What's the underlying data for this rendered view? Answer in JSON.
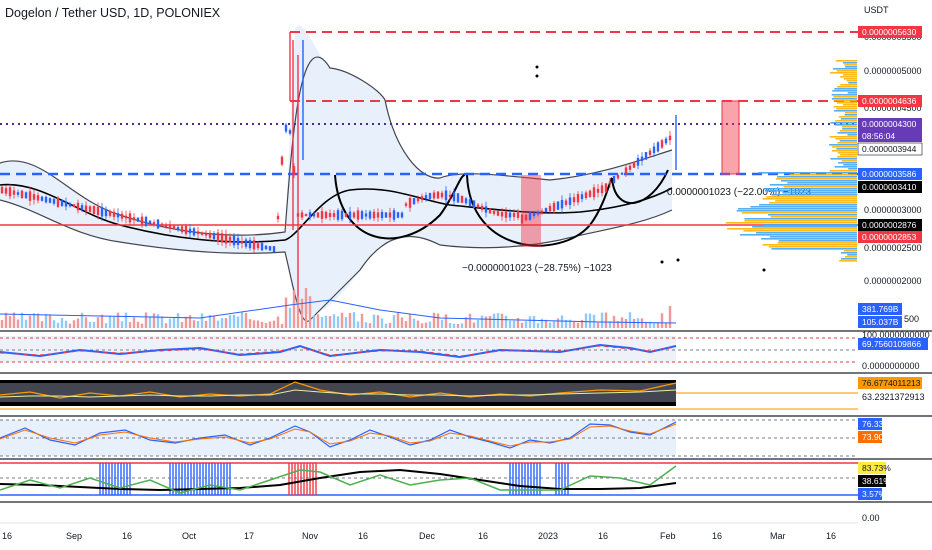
{
  "header": {
    "title": "Dogelon / Tether USD, 1D, POLONIEX",
    "currency": "USDT"
  },
  "chart_data": {
    "type": "candlestick",
    "symbol": "Dogelon / Tether USD",
    "timeframe": "1D",
    "exchange": "POLONIEX",
    "price_axis": {
      "ticks": [
        "0.0000005500",
        "0.0000005000",
        "0.0000004500",
        "0.0000003000",
        "0.0000002500",
        "0.0000002000"
      ],
      "ylim": [
        1.85e-07,
        5.95e-07
      ]
    },
    "price_labels": [
      {
        "text": "0.0000005630",
        "color": "#f23645",
        "kind": "line-tag"
      },
      {
        "text": "0.0000004636",
        "color": "#f23645",
        "kind": "line-tag"
      },
      {
        "text": "0.0000004300",
        "color": "#673ab7",
        "kind": "last-price"
      },
      {
        "text": "08:56:04",
        "color": "#673ab7",
        "kind": "countdown"
      },
      {
        "text": "0.0000003944",
        "color": "#ffffff",
        "kind": "value"
      },
      {
        "text": "0.0000003586",
        "color": "#2962ff",
        "kind": "line-tag"
      },
      {
        "text": "0.0000003410",
        "color": "#000000",
        "kind": "value"
      },
      {
        "text": "0.0000002876",
        "color": "#000000",
        "kind": "value"
      },
      {
        "text": "0.0000002853",
        "color": "#f23645",
        "kind": "line-tag"
      }
    ],
    "x_axis_labels": [
      "16",
      "Sep",
      "16",
      "Oct",
      "17",
      "Nov",
      "16",
      "Dec",
      "16",
      "2023",
      "16",
      "Feb",
      "16",
      "Mar",
      "16"
    ],
    "annotations": [
      "0.0000001023 (−22.00%) −1023",
      "−0.0000001023 (−28.75%) −1023"
    ],
    "volume": {
      "labels": [
        "381.769B",
        "105.037B"
      ],
      "tick": "500"
    },
    "indicators": [
      {
        "name": "panel1",
        "ticks": [
          "100.0000000000",
          "0.0000000000"
        ],
        "value": "69.7560109866"
      },
      {
        "name": "panel2",
        "values": [
          "76.6774011213",
          "63.2321372913"
        ]
      },
      {
        "name": "stochastic",
        "values": [
          "76.33",
          "73.90"
        ]
      },
      {
        "name": "panel4",
        "values": [
          "83.73%",
          "38.61%",
          "3.57%"
        ],
        "tick": "0.00"
      }
    ],
    "series": [
      {
        "kind": "ohlc",
        "x_range": [
          "Aug 16 2022",
          "Feb 3 2023"
        ],
        "close_approx": [
          3.5e-07,
          3.4e-07,
          3.1e-07,
          2.95e-07,
          2.8e-07,
          2.68e-07,
          2.68e-07,
          2.68e-07,
          2.68e-07,
          5.05e-07,
          4e-07,
          3.3e-07,
          3e-07,
          2.95e-07,
          2.95e-07,
          3e-07,
          3.2e-07,
          3.25e-07,
          3.3e-07,
          3.1e-07,
          3e-07,
          3e-07,
          3.05e-07,
          3.15e-07,
          3.25e-07,
          3.45e-07,
          3.5e-07,
          3.6e-07,
          3.85e-07,
          4.3e-07
        ]
      }
    ]
  }
}
